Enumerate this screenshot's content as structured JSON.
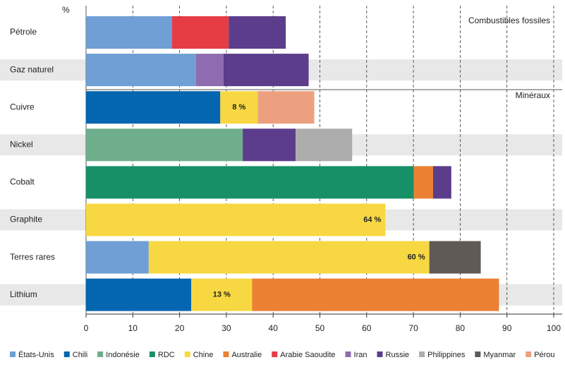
{
  "chart_data": {
    "type": "bar",
    "orientation": "horizontal",
    "stacked": true,
    "y_axis_label": "%",
    "annotations": [
      "Combustibles fossiles",
      "Minéraux"
    ],
    "categories": [
      "Pétrole",
      "Gaz naturel",
      "Cuivre",
      "Nickel",
      "Cobalt",
      "Graphite",
      "Terres rares",
      "Lithium"
    ],
    "series": [
      {
        "name": "États-Unis",
        "color": "#6f9fd4",
        "values": [
          18.4,
          23.5,
          null,
          null,
          null,
          null,
          13.4,
          null
        ]
      },
      {
        "name": "Chili",
        "color": "#0466b0",
        "values": [
          null,
          null,
          28.7,
          null,
          null,
          null,
          null,
          22.5
        ]
      },
      {
        "name": "Indonésie",
        "color": "#6fae8c",
        "values": [
          null,
          null,
          null,
          33.5,
          null,
          null,
          null,
          null
        ]
      },
      {
        "name": "RDC",
        "color": "#179068",
        "values": [
          null,
          null,
          null,
          null,
          70.1,
          null,
          null,
          null
        ]
      },
      {
        "name": "Chine",
        "color": "#f7d842",
        "values": [
          null,
          null,
          8,
          null,
          null,
          64,
          60,
          13
        ],
        "value_labels": [
          null,
          null,
          "8 %",
          null,
          null,
          "64 %",
          "60 %",
          "13 %"
        ]
      },
      {
        "name": "Australie",
        "color": "#ec8033",
        "values": [
          null,
          null,
          null,
          null,
          4.1,
          null,
          null,
          52.8
        ]
      },
      {
        "name": "Arabie Saoudite",
        "color": "#e63c44",
        "values": [
          12.1,
          null,
          null,
          null,
          null,
          null,
          null,
          null
        ]
      },
      {
        "name": "Iran",
        "color": "#8f6bb0",
        "values": [
          null,
          5.9,
          null,
          null,
          null,
          null,
          null,
          null
        ]
      },
      {
        "name": "Russie",
        "color": "#5c3d8b",
        "values": [
          12.2,
          18.2,
          null,
          11.3,
          3.9,
          null,
          null,
          null
        ]
      },
      {
        "name": "Philippines",
        "color": "#adadad",
        "values": [
          null,
          null,
          null,
          12.1,
          null,
          null,
          null,
          null
        ]
      },
      {
        "name": "Myanmar",
        "color": "#5f5a56",
        "values": [
          null,
          null,
          null,
          null,
          null,
          null,
          11,
          null
        ]
      },
      {
        "name": "Pérou",
        "color": "#eda07f",
        "values": [
          null,
          null,
          12.1,
          null,
          null,
          null,
          null,
          null
        ]
      }
    ],
    "xlim": [
      0,
      100
    ],
    "xticks": [
      0,
      10,
      20,
      30,
      40,
      50,
      60,
      70,
      80,
      90,
      100
    ],
    "grid": true
  }
}
